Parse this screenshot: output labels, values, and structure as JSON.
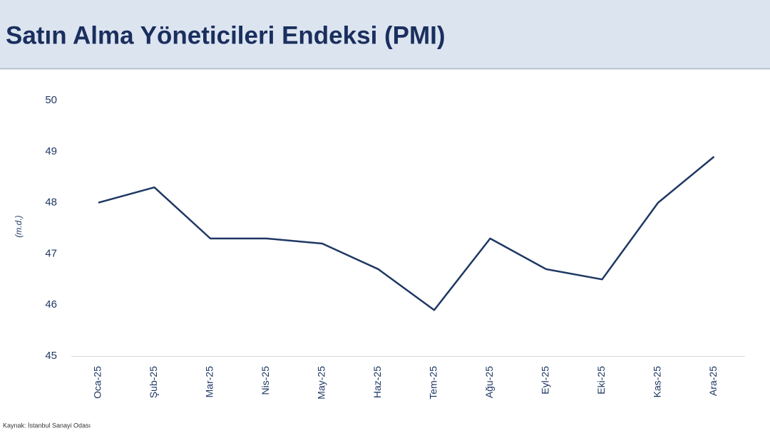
{
  "chart_data": {
    "type": "line",
    "title": "Satın Alma Yöneticileri Endeksi (PMI)",
    "y_label": "(m.d.)",
    "source": "Kaynak: İstanbul Sanayi Odası",
    "categories": [
      "Oca-25",
      "Şub-25",
      "Mar-25",
      "Nis-25",
      "May-25",
      "Haz-25",
      "Tem-25",
      "Ağu-25",
      "Eyl-25",
      "Eki-25",
      "Kas-25",
      "Ara-25"
    ],
    "values": [
      48.0,
      48.3,
      47.3,
      47.3,
      47.2,
      46.7,
      45.9,
      47.3,
      46.7,
      46.5,
      48.0,
      48.9
    ],
    "color": "#1f3864",
    "ylim": [
      45,
      50
    ],
    "yticks": [
      45,
      46,
      47,
      48,
      49,
      50
    ],
    "grid": false
  }
}
